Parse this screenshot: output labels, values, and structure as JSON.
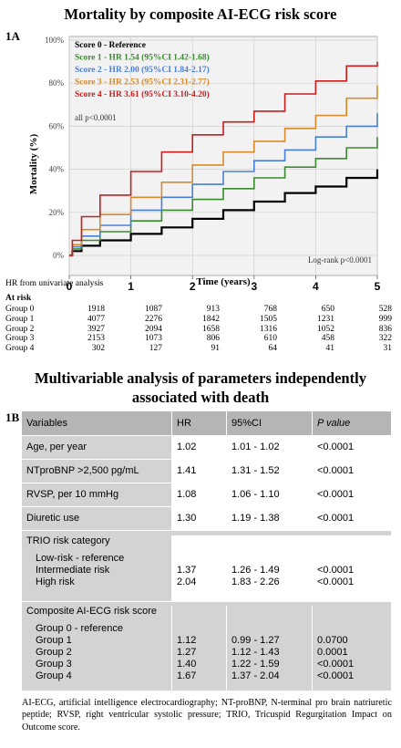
{
  "figure_title": "Mortality by composite AI-ECG risk score",
  "panel_a_label": "1A",
  "panel_b_label": "1B",
  "chart_data": {
    "type": "line",
    "title": "Mortality by composite AI-ECG risk score",
    "xlabel": "Time (years)",
    "ylabel": "Mortality (%)",
    "xlim": [
      0,
      5
    ],
    "ylim": [
      0,
      100
    ],
    "x_ticks": [
      "0",
      "1",
      "2",
      "3",
      "4",
      "5"
    ],
    "y_ticks": [
      "0%",
      "20%",
      "40%",
      "60%",
      "80%",
      "100%"
    ],
    "legend_placement": "top-left",
    "legend": [
      {
        "text": "Score 0 - Reference",
        "color": "#000000"
      },
      {
        "text": "Score 1 - HR 1.54 (95%CI 1.42-1.68)",
        "color": "#3a8a2e"
      },
      {
        "text": "Score 2 - HR 2.00 (95%CI 1.84-2.17)",
        "color": "#4a7fd8"
      },
      {
        "text": "Score 3 - HR 2.53 (95%CI 2.31-2.77)",
        "color": "#d98a2b"
      },
      {
        "text": "Score 4 - HR 3.61 (95%CI 3.10-4.20)",
        "color": "#c81e1e"
      }
    ],
    "annotations": [
      "all p<0.0001",
      "Log-rank p<0.0001",
      "HR from univariate analysis"
    ],
    "series": [
      {
        "color": "#000000",
        "x": [
          0,
          0.05,
          0.2,
          0.5,
          1.0,
          1.5,
          2.0,
          2.5,
          3.0,
          3.5,
          4.0,
          4.5,
          5.0
        ],
        "values": [
          0,
          2,
          4.5,
          7,
          10,
          13,
          17,
          21,
          25,
          29,
          32,
          36,
          40
        ]
      },
      {
        "color": "#3a8a2e",
        "x": [
          0,
          0.05,
          0.2,
          0.5,
          1.0,
          1.5,
          2.0,
          2.5,
          3.0,
          3.5,
          4.0,
          4.5,
          5.0
        ],
        "values": [
          0,
          3,
          7,
          11,
          16,
          21,
          26,
          31,
          36,
          41,
          45,
          50,
          55
        ]
      },
      {
        "color": "#4a7fd8",
        "x": [
          0,
          0.05,
          0.2,
          0.5,
          1.0,
          1.5,
          2.0,
          2.5,
          3.0,
          3.5,
          4.0,
          4.5,
          5.0
        ],
        "values": [
          0,
          4,
          9,
          14,
          21,
          27,
          33,
          39,
          44,
          49,
          55,
          60,
          66
        ]
      },
      {
        "color": "#d98a2b",
        "x": [
          0,
          0.05,
          0.2,
          0.5,
          1.0,
          1.5,
          2.0,
          2.5,
          3.0,
          3.5,
          4.0,
          4.5,
          5.0
        ],
        "values": [
          0,
          5,
          12,
          19,
          27,
          34,
          42,
          48,
          53,
          59,
          65,
          73,
          79
        ]
      },
      {
        "color": "#c81e1e",
        "x": [
          0,
          0.05,
          0.2,
          0.5,
          1.0,
          1.5,
          2.0,
          2.5,
          3.0,
          3.5,
          4.0,
          4.5,
          5.0
        ],
        "values": [
          0,
          7,
          18,
          28,
          39,
          48,
          56,
          62,
          67,
          75,
          81,
          88,
          90
        ]
      }
    ]
  },
  "risk_table": {
    "label": "At risk",
    "rows": [
      {
        "group": "Group 0",
        "values": [
          "1918",
          "1087",
          "913",
          "768",
          "650",
          "528"
        ]
      },
      {
        "group": "Group 1",
        "values": [
          "4077",
          "2276",
          "1842",
          "1505",
          "1231",
          "999"
        ]
      },
      {
        "group": "Group 2",
        "values": [
          "3927",
          "2094",
          "1658",
          "1316",
          "1052",
          "836"
        ]
      },
      {
        "group": "Group 3",
        "values": [
          "2153",
          "1073",
          "806",
          "610",
          "458",
          "322"
        ]
      },
      {
        "group": "Group 4",
        "values": [
          "302",
          "127",
          "91",
          "64",
          "41",
          "31"
        ]
      }
    ]
  },
  "table_title": "Multivariable analysis of parameters independently associated with death",
  "table": {
    "headers": {
      "variables": "Variables",
      "hr": "HR",
      "ci": "95%CI",
      "p": "P value"
    },
    "rows": [
      {
        "variable": "Age, per year",
        "hr": "1.02",
        "ci": "1.01 - 1.02",
        "p": "<0.0001"
      },
      {
        "variable": "NTproBNP >2,500 pg/mL",
        "hr": "1.41",
        "ci": "1.31 - 1.52",
        "p": "<0.0001"
      },
      {
        "variable": "RVSP, per 10 mmHg",
        "hr": "1.08",
        "ci": "1.06 - 1.10",
        "p": "<0.0001"
      },
      {
        "variable": "Diuretic use",
        "hr": "1.30",
        "ci": "1.19 - 1.38",
        "p": "<0.0001"
      }
    ],
    "trio": {
      "title": "TRIO risk category",
      "sub": [
        {
          "variable": "Low-risk - reference",
          "hr": "",
          "ci": "",
          "p": ""
        },
        {
          "variable": "Intermediate risk",
          "hr": "1.37",
          "ci": "1.26 - 1.49",
          "p": "<0.0001"
        },
        {
          "variable": "High risk",
          "hr": "2.04",
          "ci": "1.83 - 2.26",
          "p": "<0.0001"
        }
      ]
    },
    "composite": {
      "title": "Composite AI-ECG risk score",
      "sub": [
        {
          "variable": "Group 0 - reference",
          "hr": "",
          "ci": "",
          "p": ""
        },
        {
          "variable": "Group 1",
          "hr": "1.12",
          "ci": "0.99 - 1.27",
          "p": "0.0700"
        },
        {
          "variable": "Group 2",
          "hr": "1.27",
          "ci": "1.12 - 1.43",
          "p": "0.0001"
        },
        {
          "variable": "Group 3",
          "hr": "1.40",
          "ci": "1.22 - 1.59",
          "p": "<0.0001"
        },
        {
          "variable": "Group 4",
          "hr": "1.67",
          "ci": "1.37 - 2.04",
          "p": "<0.0001"
        }
      ]
    }
  },
  "footnote": "AI-ECG, artificial intelligence electrocardiography; NT-proBNP, N-terminal pro brain natriuretic peptide; RVSP, right ventricular systolic pressure; TRIO, Tricuspid Regurgitation Impact on Outcome score."
}
